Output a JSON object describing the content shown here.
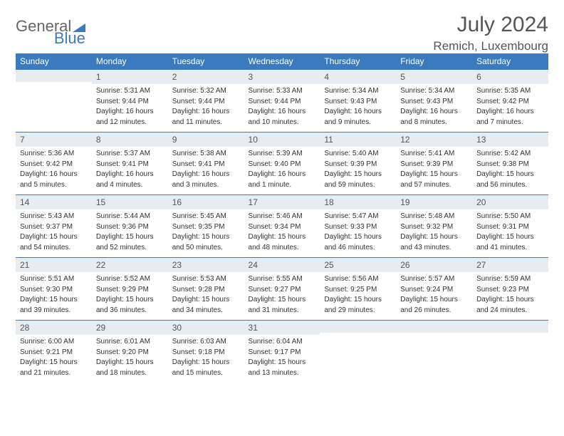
{
  "brand": {
    "part1": "General",
    "part2": "Blue"
  },
  "title": "July 2024",
  "location": "Remich, Luxembourg",
  "colors": {
    "header_bg": "#3a7bbf",
    "header_text": "#ffffff",
    "daynum_bg": "#e9ecef",
    "border": "#3a7bbf",
    "text": "#333333",
    "title_color": "#555555"
  },
  "typography": {
    "title_fontsize": 30,
    "location_fontsize": 17,
    "header_fontsize": 12,
    "body_fontsize": 10
  },
  "weekdays": [
    "Sunday",
    "Monday",
    "Tuesday",
    "Wednesday",
    "Thursday",
    "Friday",
    "Saturday"
  ],
  "weeks": [
    [
      null,
      {
        "n": "1",
        "sr": "Sunrise: 5:31 AM",
        "ss": "Sunset: 9:44 PM",
        "d1": "Daylight: 16 hours",
        "d2": "and 12 minutes."
      },
      {
        "n": "2",
        "sr": "Sunrise: 5:32 AM",
        "ss": "Sunset: 9:44 PM",
        "d1": "Daylight: 16 hours",
        "d2": "and 11 minutes."
      },
      {
        "n": "3",
        "sr": "Sunrise: 5:33 AM",
        "ss": "Sunset: 9:44 PM",
        "d1": "Daylight: 16 hours",
        "d2": "and 10 minutes."
      },
      {
        "n": "4",
        "sr": "Sunrise: 5:34 AM",
        "ss": "Sunset: 9:43 PM",
        "d1": "Daylight: 16 hours",
        "d2": "and 9 minutes."
      },
      {
        "n": "5",
        "sr": "Sunrise: 5:34 AM",
        "ss": "Sunset: 9:43 PM",
        "d1": "Daylight: 16 hours",
        "d2": "and 8 minutes."
      },
      {
        "n": "6",
        "sr": "Sunrise: 5:35 AM",
        "ss": "Sunset: 9:42 PM",
        "d1": "Daylight: 16 hours",
        "d2": "and 7 minutes."
      }
    ],
    [
      {
        "n": "7",
        "sr": "Sunrise: 5:36 AM",
        "ss": "Sunset: 9:42 PM",
        "d1": "Daylight: 16 hours",
        "d2": "and 5 minutes."
      },
      {
        "n": "8",
        "sr": "Sunrise: 5:37 AM",
        "ss": "Sunset: 9:41 PM",
        "d1": "Daylight: 16 hours",
        "d2": "and 4 minutes."
      },
      {
        "n": "9",
        "sr": "Sunrise: 5:38 AM",
        "ss": "Sunset: 9:41 PM",
        "d1": "Daylight: 16 hours",
        "d2": "and 3 minutes."
      },
      {
        "n": "10",
        "sr": "Sunrise: 5:39 AM",
        "ss": "Sunset: 9:40 PM",
        "d1": "Daylight: 16 hours",
        "d2": "and 1 minute."
      },
      {
        "n": "11",
        "sr": "Sunrise: 5:40 AM",
        "ss": "Sunset: 9:39 PM",
        "d1": "Daylight: 15 hours",
        "d2": "and 59 minutes."
      },
      {
        "n": "12",
        "sr": "Sunrise: 5:41 AM",
        "ss": "Sunset: 9:39 PM",
        "d1": "Daylight: 15 hours",
        "d2": "and 57 minutes."
      },
      {
        "n": "13",
        "sr": "Sunrise: 5:42 AM",
        "ss": "Sunset: 9:38 PM",
        "d1": "Daylight: 15 hours",
        "d2": "and 56 minutes."
      }
    ],
    [
      {
        "n": "14",
        "sr": "Sunrise: 5:43 AM",
        "ss": "Sunset: 9:37 PM",
        "d1": "Daylight: 15 hours",
        "d2": "and 54 minutes."
      },
      {
        "n": "15",
        "sr": "Sunrise: 5:44 AM",
        "ss": "Sunset: 9:36 PM",
        "d1": "Daylight: 15 hours",
        "d2": "and 52 minutes."
      },
      {
        "n": "16",
        "sr": "Sunrise: 5:45 AM",
        "ss": "Sunset: 9:35 PM",
        "d1": "Daylight: 15 hours",
        "d2": "and 50 minutes."
      },
      {
        "n": "17",
        "sr": "Sunrise: 5:46 AM",
        "ss": "Sunset: 9:34 PM",
        "d1": "Daylight: 15 hours",
        "d2": "and 48 minutes."
      },
      {
        "n": "18",
        "sr": "Sunrise: 5:47 AM",
        "ss": "Sunset: 9:33 PM",
        "d1": "Daylight: 15 hours",
        "d2": "and 46 minutes."
      },
      {
        "n": "19",
        "sr": "Sunrise: 5:48 AM",
        "ss": "Sunset: 9:32 PM",
        "d1": "Daylight: 15 hours",
        "d2": "and 43 minutes."
      },
      {
        "n": "20",
        "sr": "Sunrise: 5:50 AM",
        "ss": "Sunset: 9:31 PM",
        "d1": "Daylight: 15 hours",
        "d2": "and 41 minutes."
      }
    ],
    [
      {
        "n": "21",
        "sr": "Sunrise: 5:51 AM",
        "ss": "Sunset: 9:30 PM",
        "d1": "Daylight: 15 hours",
        "d2": "and 39 minutes."
      },
      {
        "n": "22",
        "sr": "Sunrise: 5:52 AM",
        "ss": "Sunset: 9:29 PM",
        "d1": "Daylight: 15 hours",
        "d2": "and 36 minutes."
      },
      {
        "n": "23",
        "sr": "Sunrise: 5:53 AM",
        "ss": "Sunset: 9:28 PM",
        "d1": "Daylight: 15 hours",
        "d2": "and 34 minutes."
      },
      {
        "n": "24",
        "sr": "Sunrise: 5:55 AM",
        "ss": "Sunset: 9:27 PM",
        "d1": "Daylight: 15 hours",
        "d2": "and 31 minutes."
      },
      {
        "n": "25",
        "sr": "Sunrise: 5:56 AM",
        "ss": "Sunset: 9:25 PM",
        "d1": "Daylight: 15 hours",
        "d2": "and 29 minutes."
      },
      {
        "n": "26",
        "sr": "Sunrise: 5:57 AM",
        "ss": "Sunset: 9:24 PM",
        "d1": "Daylight: 15 hours",
        "d2": "and 26 minutes."
      },
      {
        "n": "27",
        "sr": "Sunrise: 5:59 AM",
        "ss": "Sunset: 9:23 PM",
        "d1": "Daylight: 15 hours",
        "d2": "and 24 minutes."
      }
    ],
    [
      {
        "n": "28",
        "sr": "Sunrise: 6:00 AM",
        "ss": "Sunset: 9:21 PM",
        "d1": "Daylight: 15 hours",
        "d2": "and 21 minutes."
      },
      {
        "n": "29",
        "sr": "Sunrise: 6:01 AM",
        "ss": "Sunset: 9:20 PM",
        "d1": "Daylight: 15 hours",
        "d2": "and 18 minutes."
      },
      {
        "n": "30",
        "sr": "Sunrise: 6:03 AM",
        "ss": "Sunset: 9:18 PM",
        "d1": "Daylight: 15 hours",
        "d2": "and 15 minutes."
      },
      {
        "n": "31",
        "sr": "Sunrise: 6:04 AM",
        "ss": "Sunset: 9:17 PM",
        "d1": "Daylight: 15 hours",
        "d2": "and 13 minutes."
      },
      null,
      null,
      null
    ]
  ]
}
